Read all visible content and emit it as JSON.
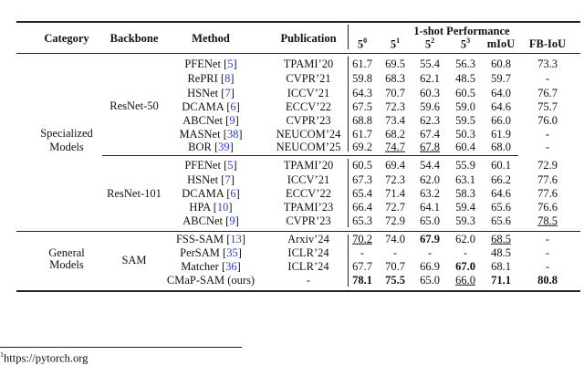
{
  "header": {
    "category": "Category",
    "backbone": "Backbone",
    "method": "Method",
    "publication": "Publication",
    "group": "1-shot Performance",
    "folds": [
      {
        "base": "5",
        "sup": "0"
      },
      {
        "base": "5",
        "sup": "1"
      },
      {
        "base": "5",
        "sup": "2"
      },
      {
        "base": "5",
        "sup": "3"
      }
    ],
    "miou": "mIoU",
    "fbiou": "FB-IoU"
  },
  "blocks": [
    {
      "category": "Specialized Models",
      "backbone": "ResNet-50",
      "rows": [
        {
          "method": "PFENet",
          "cite": "5",
          "pub": "TPAMI’20",
          "vals": [
            {
              "v": "61.7"
            },
            {
              "v": "69.5"
            },
            {
              "v": "55.4"
            },
            {
              "v": "56.3"
            },
            {
              "v": "60.8"
            },
            {
              "v": "73.3"
            }
          ]
        },
        {
          "method": "RePRI",
          "cite": "8",
          "pub": "CVPR’21",
          "vals": [
            {
              "v": "59.8"
            },
            {
              "v": "68.3"
            },
            {
              "v": "62.1"
            },
            {
              "v": "48.5"
            },
            {
              "v": "59.7"
            },
            {
              "v": "-"
            }
          ]
        },
        {
          "method": "HSNet",
          "cite": "7",
          "pub": "ICCV’21",
          "vals": [
            {
              "v": "64.3"
            },
            {
              "v": "70.7"
            },
            {
              "v": "60.3"
            },
            {
              "v": "60.5"
            },
            {
              "v": "64.0"
            },
            {
              "v": "76.7"
            }
          ]
        },
        {
          "method": "DCAMA",
          "cite": "6",
          "pub": "ECCV’22",
          "vals": [
            {
              "v": "67.5"
            },
            {
              "v": "72.3"
            },
            {
              "v": "59.6"
            },
            {
              "v": "59.0"
            },
            {
              "v": "64.6"
            },
            {
              "v": "75.7"
            }
          ]
        },
        {
          "method": "ABCNet",
          "cite": "9",
          "pub": "CVPR’23",
          "vals": [
            {
              "v": "68.8"
            },
            {
              "v": "73.4"
            },
            {
              "v": "62.3"
            },
            {
              "v": "59.5"
            },
            {
              "v": "66.0"
            },
            {
              "v": "76.0"
            }
          ]
        },
        {
          "method": "MASNet",
          "cite": "38",
          "pub": "NEUCOM’24",
          "vals": [
            {
              "v": "61.7"
            },
            {
              "v": "68.2"
            },
            {
              "v": "67.4"
            },
            {
              "v": "50.3"
            },
            {
              "v": "61.9"
            },
            {
              "v": "-"
            }
          ]
        },
        {
          "method": "BOR",
          "cite": "39",
          "pub": "NEUCOM’25",
          "vals": [
            {
              "v": "69.2"
            },
            {
              "v": "74.7",
              "u": true
            },
            {
              "v": "67.8",
              "u": true
            },
            {
              "v": "60.4"
            },
            {
              "v": "68.0"
            },
            {
              "v": "-"
            }
          ]
        }
      ]
    },
    {
      "category": "",
      "backbone": "ResNet-101",
      "rows": [
        {
          "method": "PFENet",
          "cite": "5",
          "pub": "TPAMI’20",
          "vals": [
            {
              "v": "60.5"
            },
            {
              "v": "69.4"
            },
            {
              "v": "54.4"
            },
            {
              "v": "55.9"
            },
            {
              "v": "60.1"
            },
            {
              "v": "72.9"
            }
          ]
        },
        {
          "method": "HSNet",
          "cite": "7",
          "pub": "ICCV’21",
          "vals": [
            {
              "v": "67.3"
            },
            {
              "v": "72.3"
            },
            {
              "v": "62.0"
            },
            {
              "v": "63.1"
            },
            {
              "v": "66.2"
            },
            {
              "v": "77.6"
            }
          ]
        },
        {
          "method": "DCAMA",
          "cite": "6",
          "pub": "ECCV’22",
          "vals": [
            {
              "v": "65.4"
            },
            {
              "v": "71.4"
            },
            {
              "v": "63.2"
            },
            {
              "v": "58.3"
            },
            {
              "v": "64.6"
            },
            {
              "v": "77.6"
            }
          ]
        },
        {
          "method": "HPA",
          "cite": "10",
          "pub": "TPAMI’23",
          "vals": [
            {
              "v": "66.4"
            },
            {
              "v": "72.7"
            },
            {
              "v": "64.1"
            },
            {
              "v": "59.4"
            },
            {
              "v": "65.6"
            },
            {
              "v": "76.6"
            }
          ]
        },
        {
          "method": "ABCNet",
          "cite": "9",
          "pub": "CVPR’23",
          "vals": [
            {
              "v": "65.3"
            },
            {
              "v": "72.9"
            },
            {
              "v": "65.0"
            },
            {
              "v": "59.3"
            },
            {
              "v": "65.6"
            },
            {
              "v": "78.5",
              "u": true
            }
          ]
        }
      ]
    },
    {
      "category": "General Models",
      "backbone": "SAM",
      "rows": [
        {
          "method": "FSS-SAM",
          "cite": "13",
          "pub": "Arxiv’24",
          "vals": [
            {
              "v": "70.2",
              "u": true
            },
            {
              "v": "74.0"
            },
            {
              "v": "67.9",
              "b": true
            },
            {
              "v": "62.0"
            },
            {
              "v": "68.5",
              "u": true
            },
            {
              "v": "-"
            }
          ]
        },
        {
          "method": "PerSAM",
          "cite": "35",
          "pub": "ICLR’24",
          "vals": [
            {
              "v": "-"
            },
            {
              "v": "-"
            },
            {
              "v": "-"
            },
            {
              "v": "-"
            },
            {
              "v": "48.5"
            },
            {
              "v": "-"
            }
          ]
        },
        {
          "method": "Matcher",
          "cite": "36",
          "pub": "ICLR’24",
          "vals": [
            {
              "v": "67.7"
            },
            {
              "v": "70.7"
            },
            {
              "v": "66.9"
            },
            {
              "v": "67.0",
              "b": true
            },
            {
              "v": "68.1"
            },
            {
              "v": "-"
            }
          ]
        },
        {
          "method": "CMaP-SAM (ours)",
          "cite": "",
          "pub": "-",
          "vals": [
            {
              "v": "78.1",
              "b": true
            },
            {
              "v": "75.5",
              "b": true
            },
            {
              "v": "65.0"
            },
            {
              "v": "66.0",
              "u": true
            },
            {
              "v": "71.1",
              "b": true
            },
            {
              "v": "80.8",
              "b": true
            }
          ]
        }
      ]
    }
  ],
  "footnote": {
    "mark": "1",
    "text": "https://pytorch.org"
  }
}
